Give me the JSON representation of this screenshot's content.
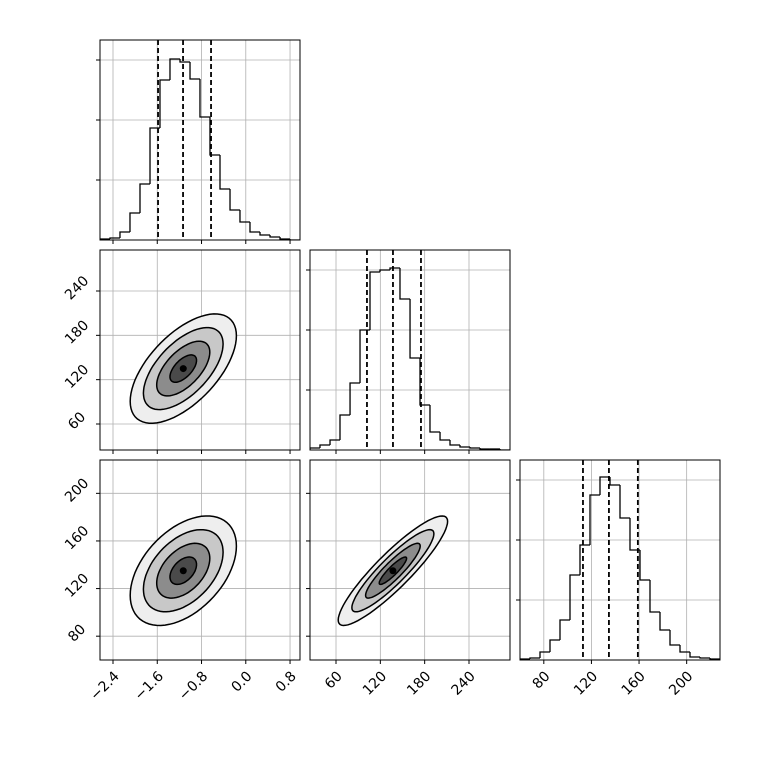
{
  "chart_data": [
    {
      "type": "histogram",
      "bins": [
        -2.635,
        -2.454,
        -2.274,
        -2.093,
        -1.912,
        -1.731,
        -1.551,
        -1.37,
        -1.189,
        -1.008,
        -0.828,
        -0.647,
        -0.466,
        -0.285,
        -0.105,
        0.076,
        0.257,
        0.438,
        0.619,
        0.799,
        0.98
      ],
      "counts": [
        1,
        2,
        8,
        27,
        56,
        112,
        160,
        181,
        178,
        161,
        123,
        85,
        51,
        30,
        18,
        8,
        5,
        3,
        1,
        0
      ],
      "quantiles": [
        -1.586,
        -1.134,
        -0.628
      ],
      "xlim": [
        -2.635,
        0.98
      ],
      "xticks": [
        -2.4,
        -1.6,
        -0.8,
        0.0,
        0.8
      ],
      "ylim": [
        0,
        200
      ],
      "yticks": [
        60,
        120,
        180
      ],
      "grid": true,
      "color": "#000000"
    },
    {
      "type": "contour",
      "mean": [
        -1.13,
        135
      ],
      "sd": [
        0.48,
        37
      ],
      "corr": 0.6,
      "levels": [
        0.5,
        1,
        1.5,
        2
      ],
      "xlim": [
        -2.635,
        0.98
      ],
      "xticks": [
        -2.4,
        -1.6,
        -0.8,
        0.0,
        0.8
      ],
      "ylim": [
        24.8,
        295.5
      ],
      "yticks": [
        60,
        120,
        180,
        240
      ],
      "grid": true,
      "color": "#000000"
    },
    {
      "type": "histogram",
      "bins": [
        24.8,
        38.3,
        51.9,
        65.4,
        79.0,
        92.5,
        106.0,
        119.5,
        133.1,
        146.6,
        160.2,
        173.7,
        187.2,
        200.8,
        214.3,
        227.8,
        241.4,
        254.9,
        268.4,
        282.0,
        295.5
      ],
      "counts": [
        2,
        5,
        10,
        35,
        67,
        120,
        178,
        180,
        182,
        151,
        92,
        45,
        18,
        10,
        5,
        3,
        2,
        1,
        1,
        0
      ],
      "quantiles": [
        101.9,
        137.1,
        175.0
      ],
      "xlim": [
        24.8,
        295.5
      ],
      "xticks": [
        60,
        120,
        180,
        240
      ],
      "ylim": [
        0,
        200
      ],
      "yticks": [
        60,
        120,
        180
      ],
      "grid": true,
      "color": "#000000"
    },
    {
      "type": "contour",
      "mean": [
        -1.13,
        135
      ],
      "sd": [
        0.48,
        23
      ],
      "corr": 0.45,
      "levels": [
        0.5,
        1,
        1.5,
        2
      ],
      "xlim": [
        -2.635,
        0.98
      ],
      "xticks": [
        {
          "value": -2.4,
          "label": "−2.4"
        },
        {
          "value": -1.6,
          "label": "−1.6"
        },
        {
          "value": -0.8,
          "label": "−0.8"
        },
        {
          "value": 0.0,
          "label": "0.0"
        },
        0.8
      ],
      "ylim": [
        60,
        228
      ],
      "yticks": [
        80,
        120,
        160,
        200
      ],
      "grid": true,
      "color": "#000000"
    },
    {
      "type": "contour",
      "mean": [
        137,
        135
      ],
      "sd": [
        37,
        23
      ],
      "corr": 0.9,
      "levels": [
        0.5,
        1,
        1.5,
        2
      ],
      "xlim": [
        24.8,
        295.5
      ],
      "xticks": [
        60,
        120,
        180,
        240
      ],
      "ylim": [
        60,
        228
      ],
      "yticks": [
        80,
        120,
        160,
        200
      ],
      "grid": true,
      "color": "#000000"
    },
    {
      "type": "histogram",
      "bins": [
        60,
        68.4,
        76.8,
        85.2,
        93.6,
        102,
        110.4,
        118.8,
        127.2,
        135.6,
        144,
        152.4,
        160.8,
        169.2,
        177.6,
        186,
        194.4,
        202.8,
        211.2,
        219.6,
        228
      ],
      "counts": [
        1,
        2,
        8,
        20,
        40,
        85,
        115,
        165,
        183,
        175,
        142,
        110,
        80,
        48,
        30,
        15,
        8,
        3,
        2,
        1
      ],
      "quantiles": [
        112.9,
        134.7,
        159.0
      ],
      "xlim": [
        60,
        228
      ],
      "xticks": [
        80,
        120,
        160,
        200
      ],
      "ylim": [
        0,
        200
      ],
      "yticks": [
        60,
        120,
        180
      ],
      "grid": true,
      "color": "#000000"
    }
  ]
}
